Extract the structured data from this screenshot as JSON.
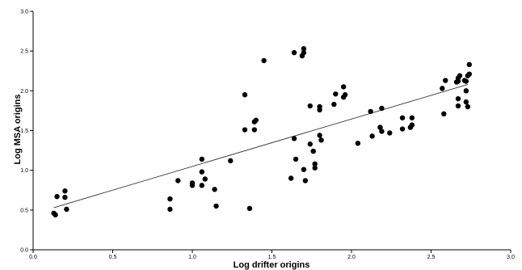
{
  "chart_data": {
    "type": "scatter",
    "title": "",
    "xlabel": "Log drifter origins",
    "ylabel": "Log MSA origins",
    "xlim": [
      0.0,
      3.0
    ],
    "ylim": [
      0.0,
      3.0
    ],
    "x_ticks": [
      "0.0",
      "0.5",
      "1.0",
      "1.5",
      "2.0",
      "2.5",
      "3.0"
    ],
    "y_ticks": [
      "0.0",
      "0.5",
      "1.0",
      "1.5",
      "2.0",
      "2.5",
      "3.0"
    ],
    "grid": false,
    "legend": "none",
    "points": [
      [
        0.13,
        0.46
      ],
      [
        0.14,
        0.44
      ],
      [
        0.15,
        0.67
      ],
      [
        0.2,
        0.74
      ],
      [
        0.2,
        0.66
      ],
      [
        0.21,
        0.51
      ],
      [
        0.86,
        0.64
      ],
      [
        0.86,
        0.51
      ],
      [
        0.91,
        0.87
      ],
      [
        1.0,
        0.84
      ],
      [
        1.0,
        0.81
      ],
      [
        1.06,
        1.14
      ],
      [
        1.06,
        0.98
      ],
      [
        1.06,
        0.81
      ],
      [
        1.08,
        0.89
      ],
      [
        1.14,
        0.76
      ],
      [
        1.15,
        0.55
      ],
      [
        1.24,
        1.12
      ],
      [
        1.33,
        1.95
      ],
      [
        1.33,
        1.51
      ],
      [
        1.36,
        0.52
      ],
      [
        1.39,
        1.61
      ],
      [
        1.4,
        1.63
      ],
      [
        1.39,
        1.51
      ],
      [
        1.45,
        2.38
      ],
      [
        1.62,
        0.9
      ],
      [
        1.64,
        2.48
      ],
      [
        1.64,
        1.4
      ],
      [
        1.65,
        1.14
      ],
      [
        1.69,
        2.44
      ],
      [
        1.7,
        2.48
      ],
      [
        1.7,
        2.53
      ],
      [
        1.7,
        1.01
      ],
      [
        1.71,
        0.87
      ],
      [
        1.74,
        1.81
      ],
      [
        1.74,
        1.33
      ],
      [
        1.76,
        1.24
      ],
      [
        1.77,
        1.08
      ],
      [
        1.77,
        1.03
      ],
      [
        1.8,
        1.8
      ],
      [
        1.8,
        1.76
      ],
      [
        1.8,
        1.44
      ],
      [
        1.81,
        1.38
      ],
      [
        1.89,
        1.83
      ],
      [
        1.9,
        1.96
      ],
      [
        1.95,
        2.05
      ],
      [
        1.95,
        1.92
      ],
      [
        1.96,
        1.95
      ],
      [
        2.04,
        1.34
      ],
      [
        2.12,
        1.74
      ],
      [
        2.13,
        1.43
      ],
      [
        2.18,
        1.54
      ],
      [
        2.19,
        1.49
      ],
      [
        2.19,
        1.78
      ],
      [
        2.24,
        1.47
      ],
      [
        2.32,
        1.66
      ],
      [
        2.32,
        1.52
      ],
      [
        2.37,
        1.54
      ],
      [
        2.38,
        1.66
      ],
      [
        2.38,
        1.57
      ],
      [
        2.57,
        2.03
      ],
      [
        2.58,
        1.71
      ],
      [
        2.59,
        2.13
      ],
      [
        2.66,
        2.11
      ],
      [
        2.67,
        2.16
      ],
      [
        2.67,
        2.12
      ],
      [
        2.67,
        1.9
      ],
      [
        2.67,
        1.81
      ],
      [
        2.68,
        2.19
      ],
      [
        2.71,
        2.13
      ],
      [
        2.72,
        1.86
      ],
      [
        2.72,
        2.12
      ],
      [
        2.73,
        1.8
      ],
      [
        2.72,
        2.0
      ],
      [
        2.73,
        2.19
      ],
      [
        2.74,
        2.33
      ],
      [
        2.74,
        2.21
      ]
    ],
    "trendline": {
      "from": [
        0.13,
        0.53
      ],
      "to": [
        2.73,
        2.08
      ]
    }
  }
}
